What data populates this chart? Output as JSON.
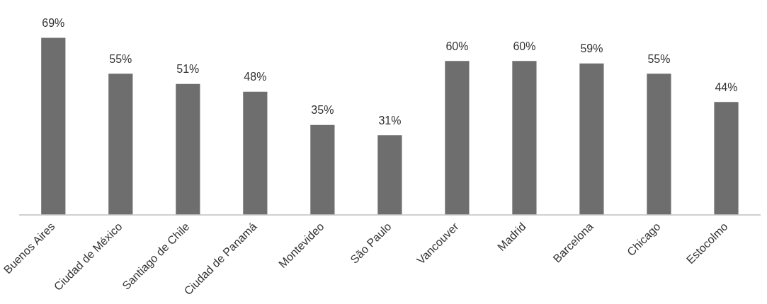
{
  "chart_data": {
    "type": "bar",
    "categories": [
      "Buenos Aires",
      "Ciudad de México",
      "Santiago de Chile",
      "Ciudad de Panamá",
      "Montevideo",
      "São Paulo",
      "Vancouver",
      "Madrid",
      "Barcelona",
      "Chicago",
      "Estocolmo"
    ],
    "values": [
      69,
      55,
      51,
      48,
      35,
      31,
      60,
      60,
      59,
      55,
      44
    ],
    "value_labels": [
      "69%",
      "55%",
      "51%",
      "48%",
      "35%",
      "31%",
      "60%",
      "60%",
      "59%",
      "55%",
      "44%"
    ],
    "color": "#6e6e6e",
    "grid": false,
    "legend": false
  }
}
